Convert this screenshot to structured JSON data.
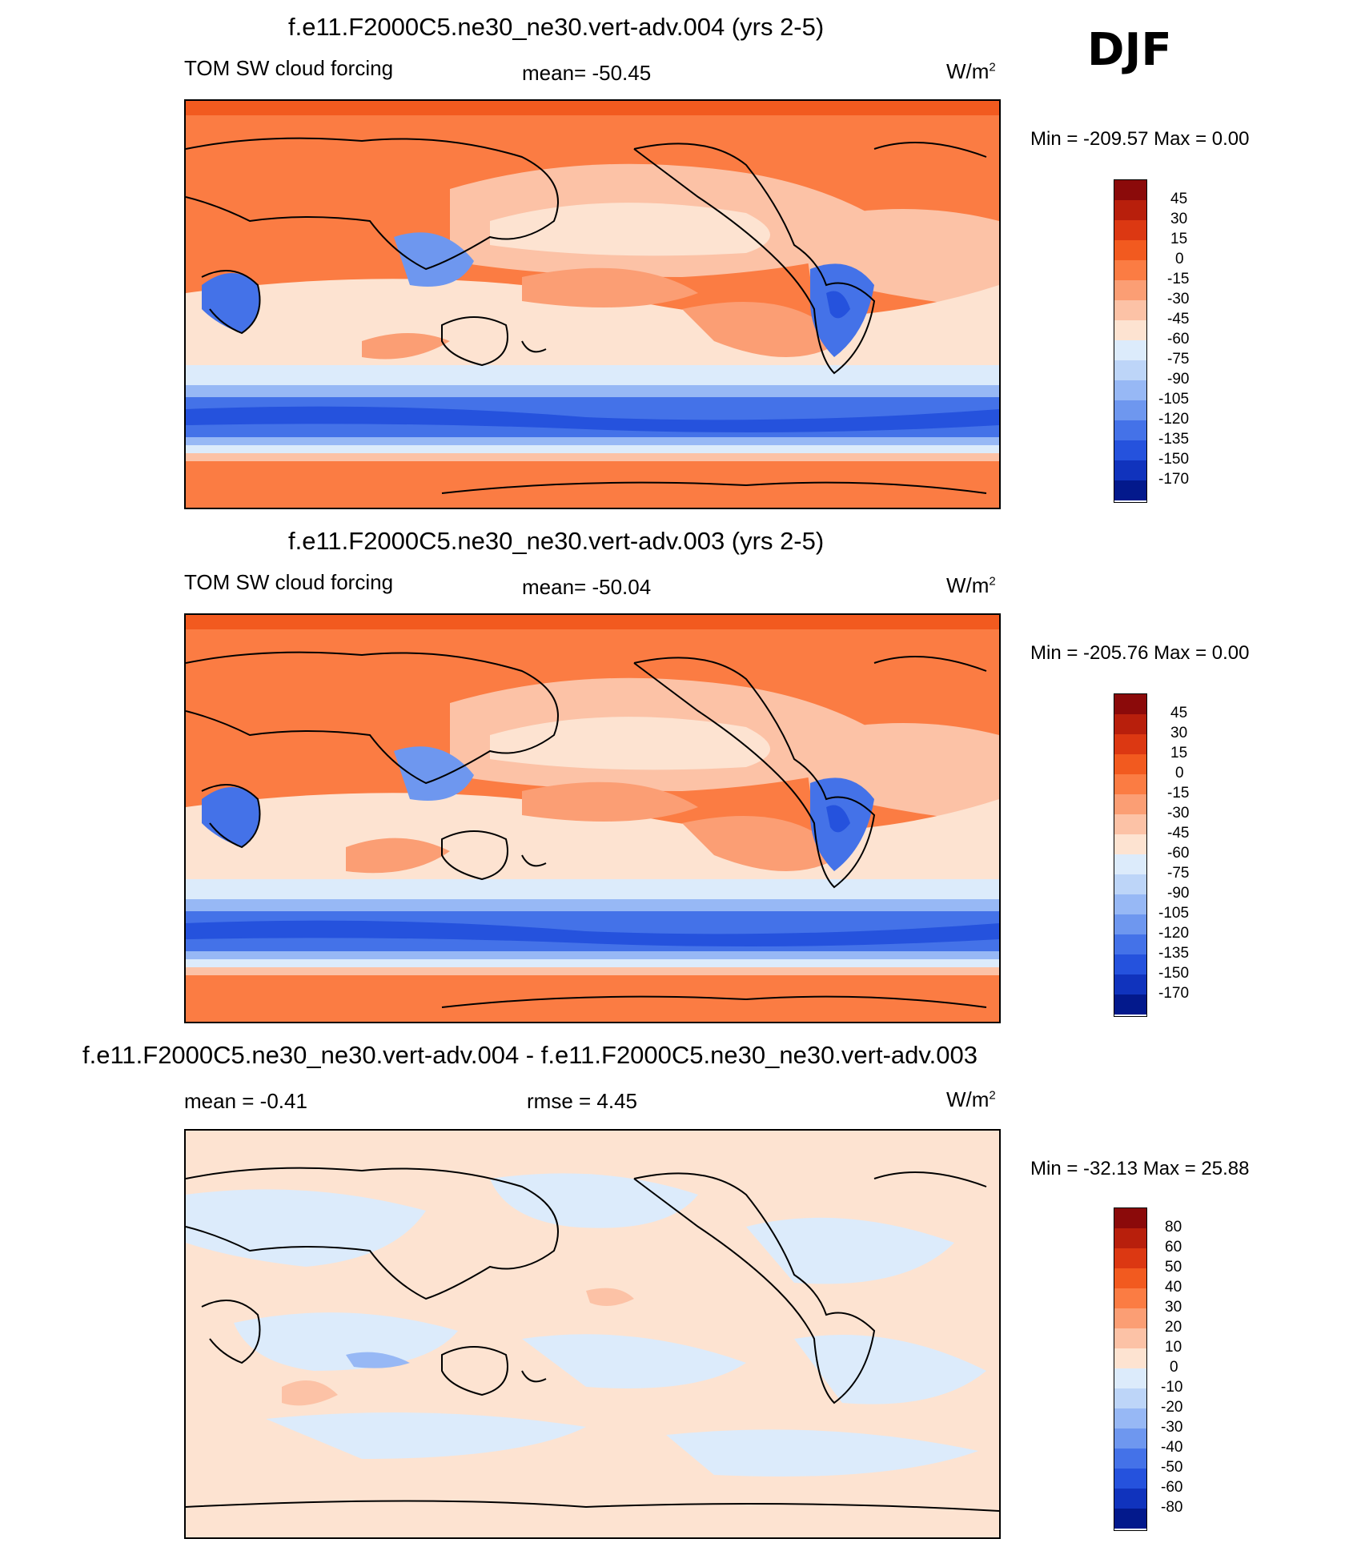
{
  "season": "DJF",
  "units": "W/m",
  "units_sup": "2",
  "panels": [
    {
      "title": "f.e11.F2000C5.ne30_ne30.vert-adv.004 (yrs 2-5)",
      "left_label": "TOM SW cloud forcing",
      "center_label": "mean= -50.45",
      "minmax": "Min = -209.57 Max =   0.00",
      "colorbar_labels": [
        "45",
        "30",
        "15",
        "0",
        "-15",
        "-30",
        "-45",
        "-60",
        "-75",
        "-90",
        "-105",
        "-120",
        "-135",
        "-150",
        "-170"
      ],
      "colorbar_colors": [
        "#8b0a0a",
        "#b81f0c",
        "#dc3812",
        "#f25a1f",
        "#fb7c43",
        "#fb9e74",
        "#fcc2a6",
        "#fde3d1",
        "#dcebfb",
        "#bdd5f8",
        "#97b8f5",
        "#6e97ef",
        "#4472e8",
        "#2552dd",
        "#1033bd",
        "#03198c"
      ]
    },
    {
      "title": "f.e11.F2000C5.ne30_ne30.vert-adv.003 (yrs 2-5)",
      "left_label": "TOM SW cloud forcing",
      "center_label": "mean= -50.04",
      "minmax": "Min = -205.76 Max =   0.00",
      "colorbar_labels": [
        "45",
        "30",
        "15",
        "0",
        "-15",
        "-30",
        "-45",
        "-60",
        "-75",
        "-90",
        "-105",
        "-120",
        "-135",
        "-150",
        "-170"
      ],
      "colorbar_colors": [
        "#8b0a0a",
        "#b81f0c",
        "#dc3812",
        "#f25a1f",
        "#fb7c43",
        "#fb9e74",
        "#fcc2a6",
        "#fde3d1",
        "#dcebfb",
        "#bdd5f8",
        "#97b8f5",
        "#6e97ef",
        "#4472e8",
        "#2552dd",
        "#1033bd",
        "#03198c"
      ]
    },
    {
      "title": "f.e11.F2000C5.ne30_ne30.vert-adv.004 - f.e11.F2000C5.ne30_ne30.vert-adv.003",
      "left_label": "mean =  -0.41",
      "center_label": "rmse =   4.45",
      "minmax": "Min = -32.13 Max =  25.88",
      "colorbar_labels": [
        "80",
        "60",
        "50",
        "40",
        "30",
        "20",
        "10",
        "0",
        "-10",
        "-20",
        "-30",
        "-40",
        "-50",
        "-60",
        "-80"
      ],
      "colorbar_colors": [
        "#8b0a0a",
        "#b81f0c",
        "#dc3812",
        "#f25a1f",
        "#fb7c43",
        "#fb9e74",
        "#fcc2a6",
        "#fde3d1",
        "#dcebfb",
        "#bdd5f8",
        "#97b8f5",
        "#6e97ef",
        "#4472e8",
        "#2552dd",
        "#1033bd",
        "#03198c"
      ]
    }
  ]
}
